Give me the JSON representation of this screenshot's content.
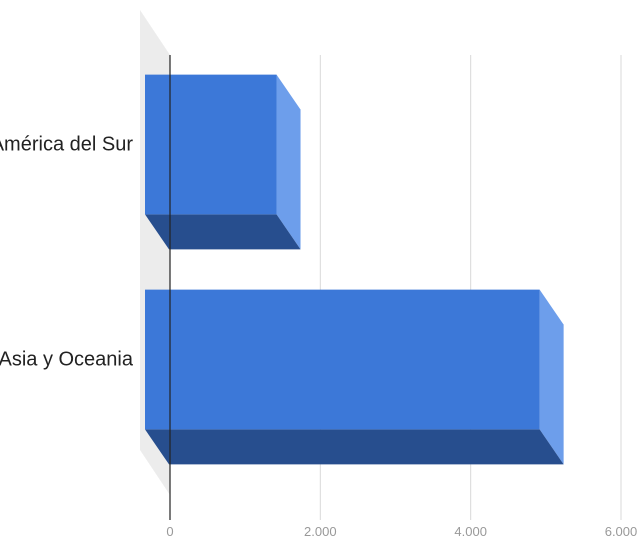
{
  "chart_data": {
    "type": "bar",
    "orientation": "horizontal",
    "title": "",
    "xlabel": "",
    "ylabel": "",
    "categories": [
      "América del Sur",
      "Asia y Oceania"
    ],
    "values": [
      1750,
      5250
    ],
    "xlim": [
      0,
      6000
    ],
    "x_ticks": [
      0,
      2000,
      4000,
      6000
    ],
    "x_tick_labels": [
      "0",
      "2.000",
      "4.000",
      "6.000"
    ],
    "grid": true,
    "legend": "none",
    "style": "3d"
  },
  "colors": {
    "bar_front": "#3c78d8",
    "bar_side": "#6d9eeb",
    "bar_bottom": "#274e8e",
    "grid": "#d9d9d9",
    "zero_line": "#222222",
    "wall": "#ececec",
    "text": "#222222",
    "tick_text": "#999999"
  }
}
